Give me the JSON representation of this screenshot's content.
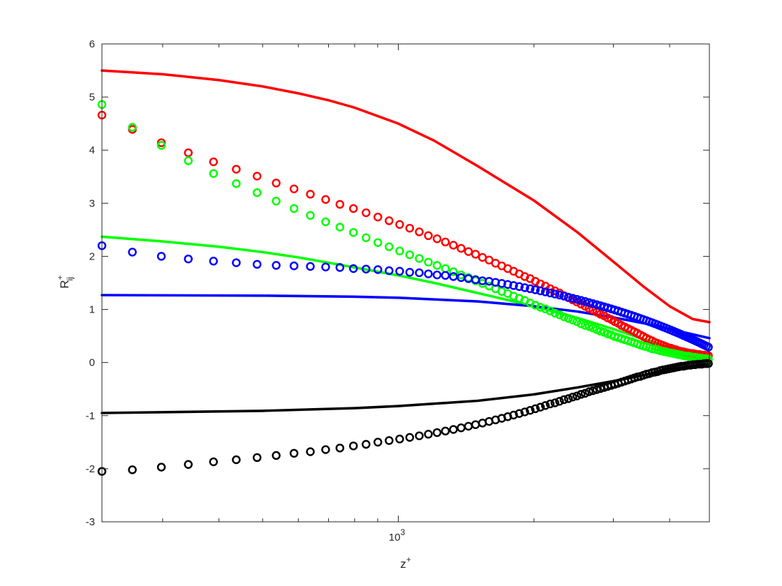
{
  "chart_data": {
    "type": "scatter",
    "title": "",
    "xlabel": {
      "base": "z",
      "sup": "+"
    },
    "ylabel": {
      "base": "R",
      "sup": "+",
      "sub": "ij"
    },
    "xscale": "log",
    "xlim": [
      220,
      4900
    ],
    "ylim": [
      -3,
      6
    ],
    "xticks": [
      {
        "value": 1000,
        "base": "10",
        "exp": "3"
      }
    ],
    "xminor": [
      300,
      400,
      500,
      600,
      700,
      800,
      900,
      2000,
      3000,
      4000
    ],
    "yticks": [
      "-3",
      "-2",
      "-1",
      "0",
      "1",
      "2",
      "3",
      "4",
      "5",
      "6"
    ],
    "grid": false,
    "legend": "none",
    "series": [
      {
        "kind": "line",
        "color": "#ff0000",
        "points": [
          [
            220,
            5.5
          ],
          [
            300,
            5.43
          ],
          [
            400,
            5.32
          ],
          [
            500,
            5.2
          ],
          [
            600,
            5.07
          ],
          [
            700,
            4.94
          ],
          [
            800,
            4.8
          ],
          [
            1000,
            4.5
          ],
          [
            1200,
            4.18
          ],
          [
            1500,
            3.7
          ],
          [
            2000,
            3.05
          ],
          [
            2500,
            2.45
          ],
          [
            3000,
            1.9
          ],
          [
            3500,
            1.43
          ],
          [
            4000,
            1.06
          ],
          [
            4500,
            0.82
          ],
          [
            4900,
            0.76
          ]
        ]
      },
      {
        "kind": "line",
        "color": "#00ff00",
        "points": [
          [
            220,
            2.37
          ],
          [
            300,
            2.28
          ],
          [
            400,
            2.18
          ],
          [
            500,
            2.08
          ],
          [
            600,
            1.98
          ],
          [
            700,
            1.88
          ],
          [
            800,
            1.79
          ],
          [
            1000,
            1.64
          ],
          [
            1200,
            1.5
          ],
          [
            1500,
            1.31
          ],
          [
            2000,
            1.06
          ],
          [
            2500,
            0.84
          ],
          [
            3000,
            0.63
          ],
          [
            3500,
            0.44
          ],
          [
            4000,
            0.29
          ],
          [
            4500,
            0.17
          ],
          [
            4900,
            0.09
          ]
        ]
      },
      {
        "kind": "line",
        "color": "#0000ff",
        "points": [
          [
            220,
            1.27
          ],
          [
            500,
            1.26
          ],
          [
            800,
            1.24
          ],
          [
            1000,
            1.22
          ],
          [
            1500,
            1.15
          ],
          [
            2000,
            1.06
          ],
          [
            2500,
            0.96
          ],
          [
            3000,
            0.85
          ],
          [
            3500,
            0.74
          ],
          [
            4000,
            0.63
          ],
          [
            4500,
            0.53
          ],
          [
            4900,
            0.46
          ]
        ]
      },
      {
        "kind": "line",
        "color": "#000000",
        "points": [
          [
            220,
            -0.95
          ],
          [
            500,
            -0.91
          ],
          [
            800,
            -0.86
          ],
          [
            1000,
            -0.82
          ],
          [
            1500,
            -0.72
          ],
          [
            2000,
            -0.6
          ],
          [
            2500,
            -0.47
          ],
          [
            3000,
            -0.35
          ],
          [
            3500,
            -0.24
          ],
          [
            4000,
            -0.14
          ],
          [
            4500,
            -0.06
          ],
          [
            4900,
            -0.02
          ]
        ]
      },
      {
        "kind": "markers",
        "color": "#ff0000",
        "x": [
          220,
          257,
          298,
          342,
          389,
          437,
          486,
          536,
          587,
          638,
          690,
          742,
          795,
          848,
          901,
          954,
          1007,
          1060,
          1113,
          1166,
          1219,
          1272,
          1325,
          1378,
          1431,
          1484,
          1537,
          1590,
          1643,
          1696,
          1749,
          1802,
          1855,
          1908,
          1961,
          2014,
          2067,
          2120,
          2173,
          2226,
          2279,
          2332,
          2385,
          2438,
          2491,
          2544,
          2597,
          2650,
          2703,
          2756,
          2809,
          2862,
          2915,
          2968,
          3021,
          3074,
          3127,
          3180,
          3233,
          3286,
          3339,
          3392,
          3445,
          3498,
          3551,
          3604,
          3657,
          3710,
          3763,
          3816,
          3869,
          3922,
          3975,
          4028,
          4081,
          4134,
          4187,
          4240,
          4293,
          4346,
          4399,
          4452,
          4505,
          4558,
          4611,
          4664,
          4717,
          4770,
          4823,
          4876
        ],
        "y": [
          4.66,
          4.39,
          4.14,
          3.95,
          3.78,
          3.64,
          3.51,
          3.38,
          3.27,
          3.17,
          3.07,
          2.98,
          2.9,
          2.82,
          2.74,
          2.67,
          2.6,
          2.53,
          2.46,
          2.39,
          2.33,
          2.27,
          2.21,
          2.15,
          2.09,
          2.04,
          1.98,
          1.93,
          1.87,
          1.82,
          1.77,
          1.72,
          1.67,
          1.62,
          1.58,
          1.53,
          1.48,
          1.44,
          1.39,
          1.35,
          1.31,
          1.26,
          1.22,
          1.18,
          1.14,
          1.1,
          1.06,
          1.02,
          0.99,
          0.95,
          0.91,
          0.88,
          0.84,
          0.81,
          0.77,
          0.74,
          0.7,
          0.67,
          0.64,
          0.61,
          0.58,
          0.55,
          0.52,
          0.49,
          0.46,
          0.43,
          0.41,
          0.38,
          0.36,
          0.34,
          0.32,
          0.3,
          0.28,
          0.27,
          0.25,
          0.24,
          0.22,
          0.21,
          0.2,
          0.19,
          0.18,
          0.17,
          0.17,
          0.16,
          0.15,
          0.15,
          0.14,
          0.14,
          0.13,
          0.13
        ]
      },
      {
        "kind": "markers",
        "color": "#00ff00",
        "x": [
          220,
          257,
          298,
          342,
          389,
          437,
          486,
          536,
          587,
          638,
          690,
          742,
          795,
          848,
          901,
          954,
          1007,
          1060,
          1113,
          1166,
          1219,
          1272,
          1325,
          1378,
          1431,
          1484,
          1537,
          1590,
          1643,
          1696,
          1749,
          1802,
          1855,
          1908,
          1961,
          2014,
          2067,
          2120,
          2173,
          2226,
          2279,
          2332,
          2385,
          2438,
          2491,
          2544,
          2597,
          2650,
          2703,
          2756,
          2809,
          2862,
          2915,
          2968,
          3021,
          3074,
          3127,
          3180,
          3233,
          3286,
          3339,
          3392,
          3445,
          3498,
          3551,
          3604,
          3657,
          3710,
          3763,
          3816,
          3869,
          3922,
          3975,
          4028,
          4081,
          4134,
          4187,
          4240,
          4293,
          4346,
          4399,
          4452,
          4505,
          4558,
          4611,
          4664,
          4717,
          4770,
          4823,
          4876
        ],
        "y": [
          4.86,
          4.43,
          4.09,
          3.8,
          3.56,
          3.37,
          3.2,
          3.04,
          2.9,
          2.77,
          2.65,
          2.55,
          2.45,
          2.35,
          2.26,
          2.18,
          2.1,
          2.03,
          1.96,
          1.89,
          1.83,
          1.77,
          1.71,
          1.65,
          1.6,
          1.54,
          1.49,
          1.44,
          1.39,
          1.34,
          1.3,
          1.25,
          1.21,
          1.17,
          1.12,
          1.08,
          1.04,
          1.01,
          0.97,
          0.93,
          0.9,
          0.86,
          0.83,
          0.8,
          0.77,
          0.73,
          0.7,
          0.68,
          0.65,
          0.62,
          0.59,
          0.57,
          0.54,
          0.52,
          0.49,
          0.47,
          0.45,
          0.43,
          0.41,
          0.39,
          0.37,
          0.35,
          0.33,
          0.31,
          0.3,
          0.28,
          0.26,
          0.25,
          0.24,
          0.22,
          0.21,
          0.2,
          0.19,
          0.18,
          0.17,
          0.16,
          0.15,
          0.14,
          0.13,
          0.12,
          0.12,
          0.11,
          0.1,
          0.1,
          0.09,
          0.08,
          0.08,
          0.07,
          0.07,
          0.06
        ]
      },
      {
        "kind": "markers",
        "color": "#0000ff",
        "x": [
          220,
          257,
          298,
          342,
          389,
          437,
          486,
          536,
          587,
          638,
          690,
          742,
          795,
          848,
          901,
          954,
          1007,
          1060,
          1113,
          1166,
          1219,
          1272,
          1325,
          1378,
          1431,
          1484,
          1537,
          1590,
          1643,
          1696,
          1749,
          1802,
          1855,
          1908,
          1961,
          2014,
          2067,
          2120,
          2173,
          2226,
          2279,
          2332,
          2385,
          2438,
          2491,
          2544,
          2597,
          2650,
          2703,
          2756,
          2809,
          2862,
          2915,
          2968,
          3021,
          3074,
          3127,
          3180,
          3233,
          3286,
          3339,
          3392,
          3445,
          3498,
          3551,
          3604,
          3657,
          3710,
          3763,
          3816,
          3869,
          3922,
          3975,
          4028,
          4081,
          4134,
          4187,
          4240,
          4293,
          4346,
          4399,
          4452,
          4505,
          4558,
          4611,
          4664,
          4717,
          4770,
          4823,
          4876
        ],
        "y": [
          2.2,
          2.08,
          2.0,
          1.95,
          1.91,
          1.88,
          1.85,
          1.83,
          1.82,
          1.81,
          1.8,
          1.79,
          1.77,
          1.76,
          1.75,
          1.73,
          1.72,
          1.7,
          1.69,
          1.67,
          1.65,
          1.64,
          1.62,
          1.6,
          1.58,
          1.56,
          1.54,
          1.53,
          1.51,
          1.49,
          1.47,
          1.45,
          1.43,
          1.41,
          1.39,
          1.37,
          1.35,
          1.33,
          1.31,
          1.29,
          1.27,
          1.25,
          1.23,
          1.21,
          1.19,
          1.17,
          1.15,
          1.13,
          1.11,
          1.09,
          1.07,
          1.05,
          1.03,
          1.01,
          0.99,
          0.97,
          0.95,
          0.93,
          0.91,
          0.89,
          0.87,
          0.85,
          0.83,
          0.81,
          0.79,
          0.77,
          0.75,
          0.73,
          0.71,
          0.69,
          0.67,
          0.65,
          0.63,
          0.61,
          0.59,
          0.57,
          0.55,
          0.53,
          0.51,
          0.49,
          0.47,
          0.45,
          0.43,
          0.41,
          0.39,
          0.37,
          0.35,
          0.33,
          0.31,
          0.29
        ]
      },
      {
        "kind": "markers",
        "color": "#000000",
        "x": [
          220,
          257,
          298,
          342,
          389,
          437,
          486,
          536,
          587,
          638,
          690,
          742,
          795,
          848,
          901,
          954,
          1007,
          1060,
          1113,
          1166,
          1219,
          1272,
          1325,
          1378,
          1431,
          1484,
          1537,
          1590,
          1643,
          1696,
          1749,
          1802,
          1855,
          1908,
          1961,
          2014,
          2067,
          2120,
          2173,
          2226,
          2279,
          2332,
          2385,
          2438,
          2491,
          2544,
          2597,
          2650,
          2703,
          2756,
          2809,
          2862,
          2915,
          2968,
          3021,
          3074,
          3127,
          3180,
          3233,
          3286,
          3339,
          3392,
          3445,
          3498,
          3551,
          3604,
          3657,
          3710,
          3763,
          3816,
          3869,
          3922,
          3975,
          4028,
          4081,
          4134,
          4187,
          4240,
          4293,
          4346,
          4399,
          4452,
          4505,
          4558,
          4611,
          4664,
          4717,
          4770,
          4823,
          4876
        ],
        "y": [
          -2.05,
          -2.02,
          -1.97,
          -1.92,
          -1.87,
          -1.83,
          -1.79,
          -1.75,
          -1.71,
          -1.68,
          -1.64,
          -1.61,
          -1.57,
          -1.54,
          -1.5,
          -1.47,
          -1.44,
          -1.41,
          -1.38,
          -1.35,
          -1.32,
          -1.29,
          -1.26,
          -1.23,
          -1.2,
          -1.17,
          -1.14,
          -1.11,
          -1.08,
          -1.05,
          -1.02,
          -0.99,
          -0.96,
          -0.93,
          -0.9,
          -0.87,
          -0.84,
          -0.81,
          -0.78,
          -0.76,
          -0.73,
          -0.7,
          -0.68,
          -0.65,
          -0.63,
          -0.6,
          -0.58,
          -0.55,
          -0.53,
          -0.51,
          -0.49,
          -0.47,
          -0.45,
          -0.43,
          -0.41,
          -0.39,
          -0.37,
          -0.35,
          -0.33,
          -0.31,
          -0.29,
          -0.27,
          -0.26,
          -0.24,
          -0.22,
          -0.21,
          -0.19,
          -0.18,
          -0.17,
          -0.15,
          -0.14,
          -0.13,
          -0.12,
          -0.11,
          -0.1,
          -0.09,
          -0.08,
          -0.07,
          -0.07,
          -0.06,
          -0.05,
          -0.05,
          -0.04,
          -0.04,
          -0.03,
          -0.03,
          -0.03,
          -0.02,
          -0.02,
          -0.02
        ]
      }
    ]
  }
}
